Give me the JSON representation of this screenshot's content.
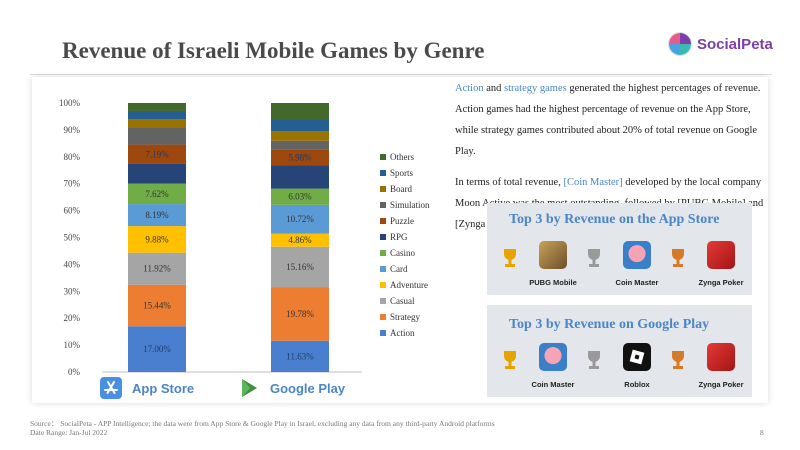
{
  "header": {
    "title": "Revenue of Israeli Mobile Games by Genre",
    "logo_text": "SocialPeta"
  },
  "chart_data": {
    "type": "bar",
    "stacked": true,
    "categories": [
      "App Store",
      "Google Play"
    ],
    "y_ticks": [
      "0%",
      "10%",
      "20%",
      "30%",
      "40%",
      "50%",
      "60%",
      "70%",
      "80%",
      "90%",
      "100%"
    ],
    "ylim": [
      0,
      100
    ],
    "legend_position": "right",
    "series": [
      {
        "name": "Action",
        "color": "#4a7fd0",
        "values": [
          17.0,
          11.63
        ],
        "labels": [
          "17.00%",
          "11.63%"
        ]
      },
      {
        "name": "Strategy",
        "color": "#ed7d31",
        "values": [
          15.44,
          19.78
        ],
        "labels": [
          "15.44%",
          "19.78%"
        ]
      },
      {
        "name": "Casual",
        "color": "#a5a5a5",
        "values": [
          11.92,
          15.16
        ],
        "labels": [
          "11.92%",
          "15.16%"
        ]
      },
      {
        "name": "Adventure",
        "color": "#ffc000",
        "values": [
          9.88,
          4.86
        ],
        "labels": [
          "9.88%",
          "4.86%"
        ]
      },
      {
        "name": "Card",
        "color": "#5b9bd5",
        "values": [
          8.19,
          10.72
        ],
        "labels": [
          "8.19%",
          "10.72%"
        ]
      },
      {
        "name": "Casino",
        "color": "#70ad47",
        "values": [
          7.62,
          6.03
        ],
        "labels": [
          "7.62%",
          "6.03%"
        ]
      },
      {
        "name": "RPG",
        "color": "#264478",
        "values": [
          7.3,
          8.6
        ],
        "labels": [
          "",
          ""
        ]
      },
      {
        "name": "Puzzle",
        "color": "#9e480e",
        "values": [
          7.19,
          5.98
        ],
        "labels": [
          "7.19%",
          "5.98%"
        ]
      },
      {
        "name": "Simulation",
        "color": "#636363",
        "values": [
          6.5,
          3.2
        ],
        "labels": [
          "",
          ""
        ]
      },
      {
        "name": "Board",
        "color": "#997300",
        "values": [
          3.0,
          3.5
        ],
        "labels": [
          "",
          ""
        ]
      },
      {
        "name": "Sports",
        "color": "#255e91",
        "values": [
          3.0,
          4.4
        ],
        "labels": [
          "",
          ""
        ]
      },
      {
        "name": "Others",
        "color": "#43682b",
        "values": [
          2.96,
          6.14
        ],
        "labels": [
          "",
          ""
        ]
      }
    ]
  },
  "stores": [
    {
      "label": "App Store",
      "color": "#4a90e2"
    },
    {
      "label": "Google Play",
      "color": "#3f8f3f"
    }
  ],
  "insight": {
    "p1_hl1": "Action",
    "p1_t1": " and ",
    "p1_hl2": "strategy games",
    "p1_t2": " generated the highest percentages of revenue. Action games had the highest percentage of revenue on the App Store, while strategy games contributed about 20% of total revenue on Google Play.",
    "p2_t1": "In terms of total revenue, ",
    "p2_hl": "[Coin Master]",
    "p2_t2": " developed by the local company Moon Active was the most outstanding, followed by [PUBG Mobile] and [Zynga Poker]."
  },
  "top_app_store": {
    "title": "Top 3 by Revenue on the App Store",
    "games": [
      "PUBG Mobile",
      "Coin Master",
      "Zynga Poker"
    ]
  },
  "top_google_play": {
    "title": "Top 3 by Revenue on Google Play",
    "games": [
      "Coin Master",
      "Roblox",
      "Zynga Poker"
    ]
  },
  "footer": {
    "source": "Source： SocialPeta - APP Intelligence; the data were from App Store & Google Play in Israel, excluding any data from any third-party Android platforms",
    "date_range": "Date Range: Jan-Jul 2022",
    "page": "8"
  }
}
